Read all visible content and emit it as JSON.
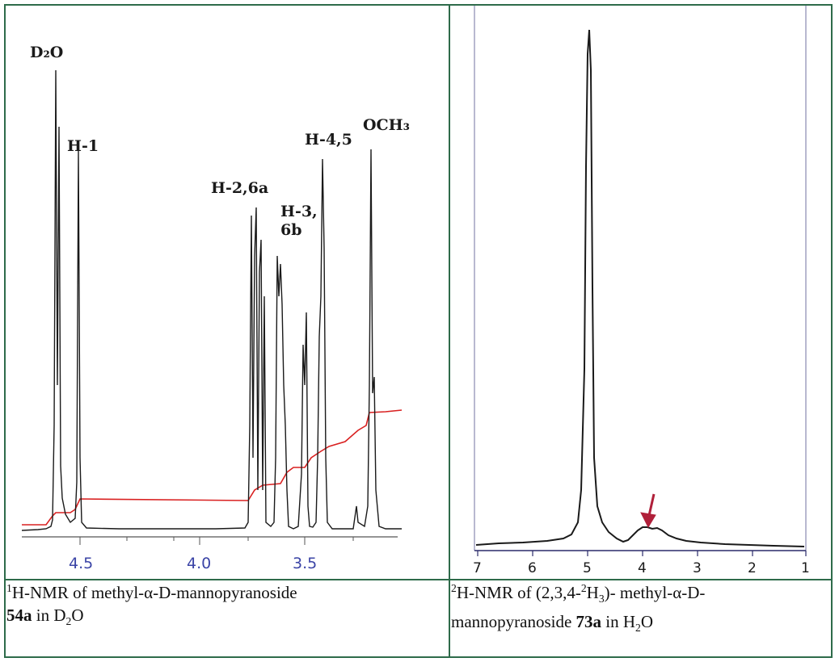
{
  "left_panel": {
    "peak_labels": {
      "d2o": "D₂O",
      "h1": "H-1",
      "h26a": "H-2,6a",
      "h3_line1": "H-3,",
      "h3_line2": "6b",
      "h45": "H-4,5",
      "och3": "OCH₃"
    },
    "axis_ticks": [
      "4.5",
      "4.0",
      "3.5"
    ],
    "colors": {
      "spectrum": "#1a1a1a",
      "integral": "#d92020",
      "tick_labels": "#3b44a6"
    },
    "caption": {
      "sup": "1",
      "text_before": "H-NMR of methyl-α-D-mannopyranoside",
      "compound": "54a",
      "text_after": " in D",
      "sub": "2",
      "text_end": "O"
    }
  },
  "right_panel": {
    "axis_ticks": [
      "7",
      "6",
      "5",
      "4",
      "3",
      "2",
      "1"
    ],
    "colors": {
      "spectrum": "#1a1a1a",
      "arrow": "#b0203a",
      "frame": "#2a2a8a"
    },
    "caption": {
      "sup1": "2",
      "text1": "H-NMR of (2,3,4-",
      "sup2": "2",
      "text2": "H",
      "sub1": "3",
      "text3": ")- methyl-α-D-",
      "text4": "mannopyranoside ",
      "compound": "73a",
      "text5": " in H",
      "sub2": "2",
      "text6": "O"
    }
  }
}
